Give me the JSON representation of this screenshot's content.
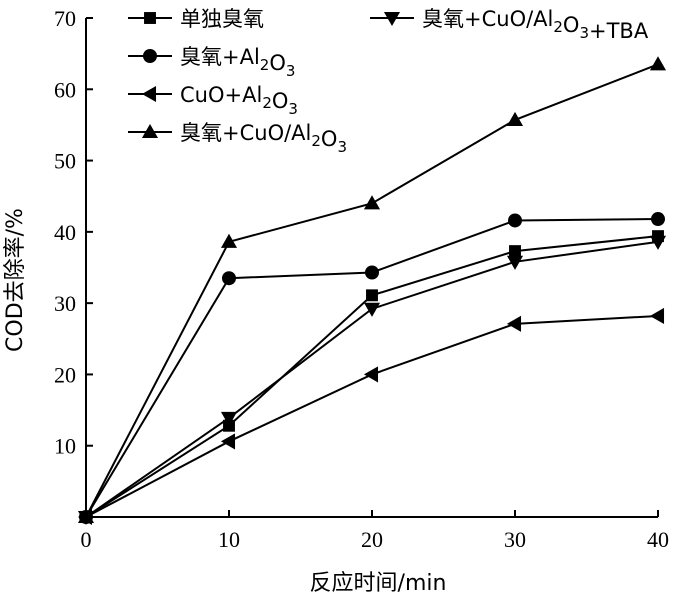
{
  "chart_data": {
    "type": "line",
    "xlabel": "反应时间/min",
    "ylabel": "COD去除率/%",
    "xlim": [
      0,
      40
    ],
    "ylim": [
      0,
      70
    ],
    "x_ticks": [
      "0",
      "10",
      "20",
      "30",
      "40"
    ],
    "y_ticks": [
      "10",
      "20",
      "30",
      "40",
      "50",
      "60",
      "70"
    ],
    "grid": false,
    "legend_placement": "top",
    "x": [
      0,
      10,
      20,
      30,
      40
    ],
    "series": [
      {
        "name": "单独臭氧",
        "marker": "square",
        "values": [
          0,
          12.8,
          31.1,
          37.3,
          39.4
        ]
      },
      {
        "name": "臭氧+Al2O3",
        "marker": "circle",
        "values": [
          0,
          33.5,
          34.3,
          41.6,
          41.8
        ]
      },
      {
        "name": "CuO+Al2O3",
        "marker": "triangle-left",
        "values": [
          0,
          10.6,
          20.0,
          27.1,
          28.2
        ]
      },
      {
        "name": "臭氧+CuO/Al2O3",
        "marker": "triangle-up",
        "values": [
          0,
          38.6,
          44.0,
          55.7,
          63.5
        ]
      },
      {
        "name": "臭氧+CuO/Al2O3+TBA",
        "marker": "triangle-down",
        "values": [
          0,
          13.9,
          29.2,
          35.8,
          38.6
        ]
      }
    ],
    "line_color": "#000000"
  }
}
